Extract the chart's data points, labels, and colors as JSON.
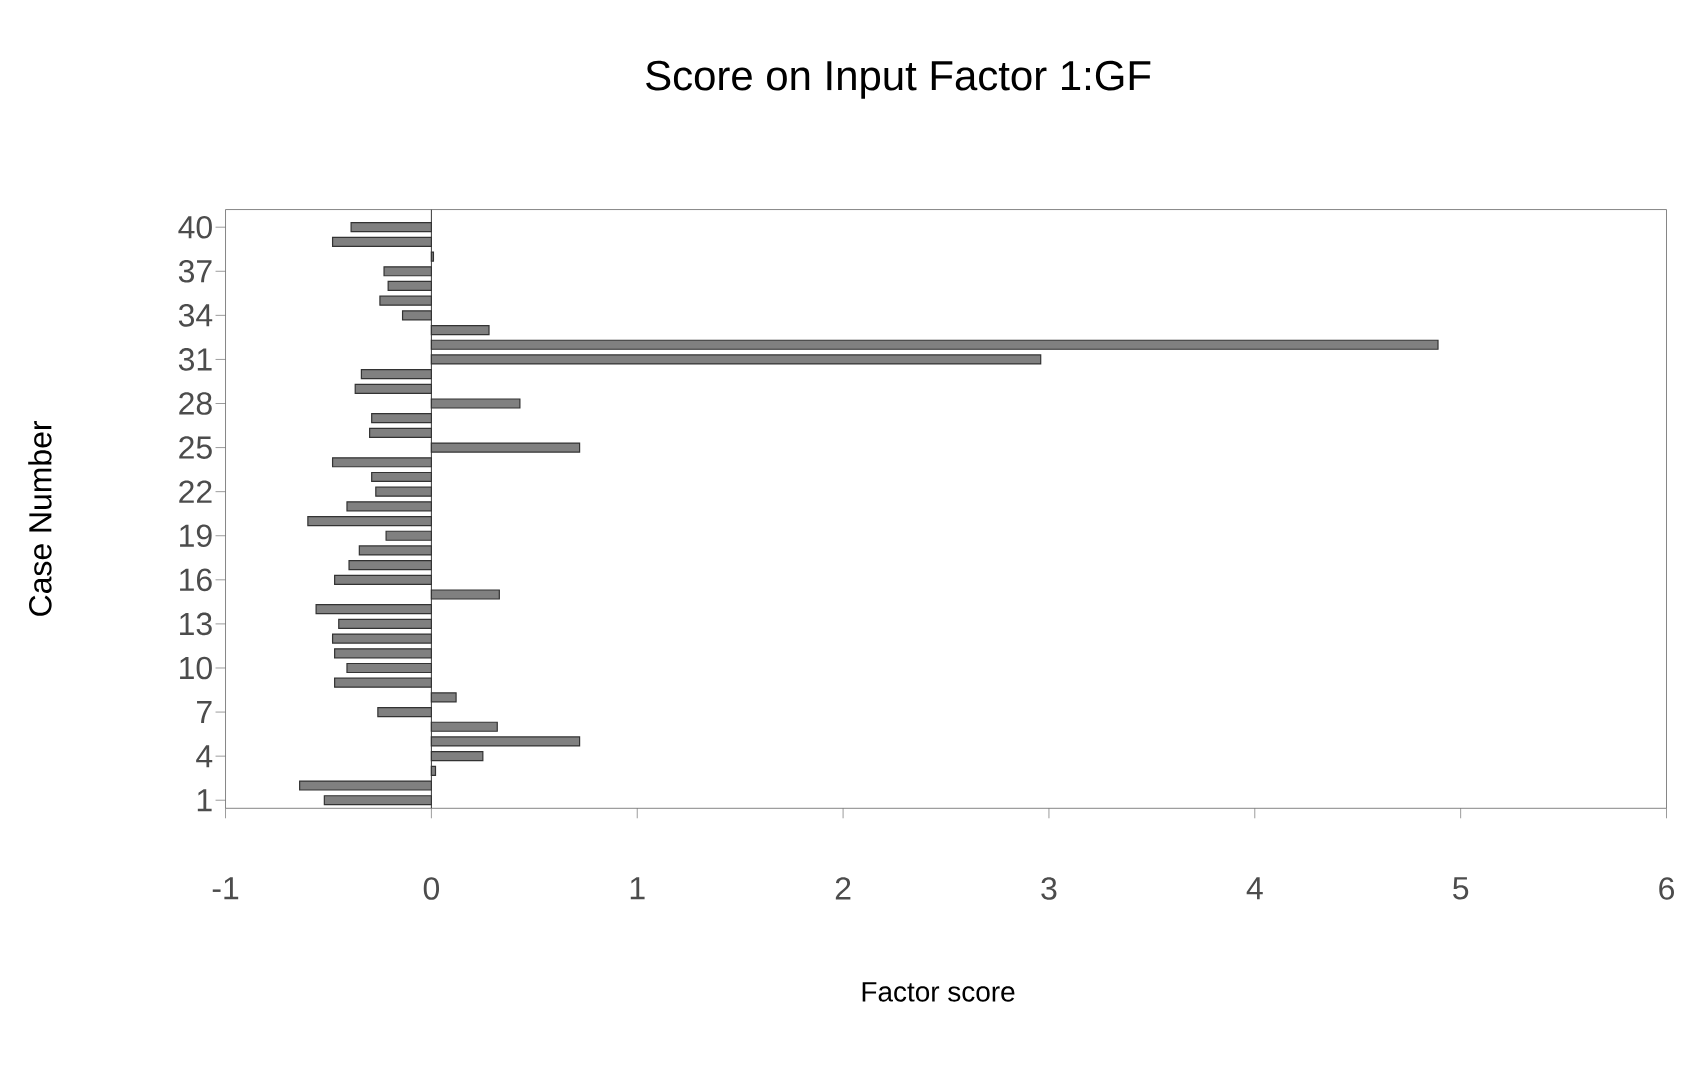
{
  "chart_data": {
    "type": "bar",
    "orientation": "horizontal",
    "title": "Score on Input Factor 1:GF",
    "xlabel": "Factor score",
    "ylabel": "Case Number",
    "categories": [
      "40",
      null,
      null,
      "37",
      null,
      null,
      "34",
      null,
      null,
      "31",
      null,
      null,
      "28",
      null,
      null,
      "25",
      null,
      null,
      "22",
      null,
      null,
      "19",
      null,
      null,
      "16",
      null,
      null,
      "13",
      null,
      null,
      "10",
      null,
      null,
      "7",
      null,
      null,
      "4",
      null,
      null,
      "1"
    ],
    "values": [
      -0.39,
      -0.48,
      0.01,
      -0.23,
      -0.21,
      -0.25,
      -0.14,
      0.28,
      4.89,
      2.96,
      -0.34,
      -0.37,
      0.43,
      -0.29,
      -0.3,
      0.72,
      -0.48,
      -0.29,
      -0.27,
      -0.41,
      -0.6,
      -0.22,
      -0.35,
      -0.4,
      -0.47,
      0.33,
      -0.56,
      -0.45,
      -0.48,
      -0.47,
      -0.41,
      -0.47,
      0.12,
      -0.26,
      0.32,
      0.72,
      0.25,
      0.02,
      -0.64,
      -0.52
    ],
    "color": "#808080",
    "xlim": [
      -1,
      6
    ],
    "xticks": [
      -1,
      0,
      1,
      2,
      3,
      4,
      5,
      6
    ],
    "grid": false,
    "ref_lines": [
      {
        "axis": "x",
        "value": 0,
        "color": "#000000"
      }
    ]
  }
}
